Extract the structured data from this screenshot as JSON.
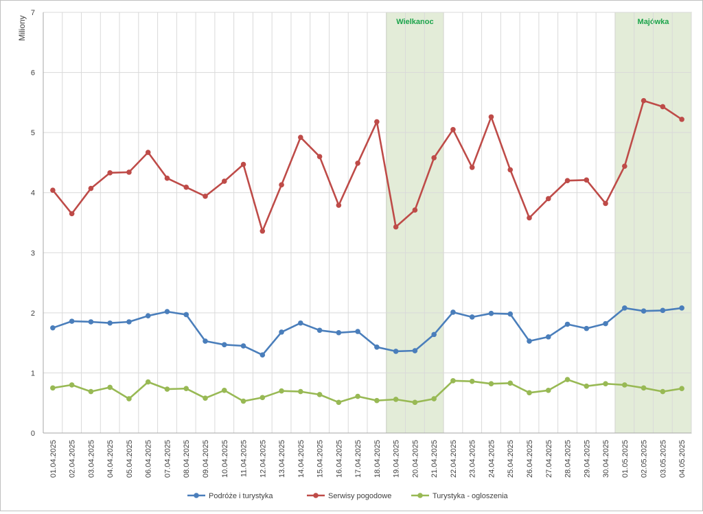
{
  "chart_data": {
    "type": "line",
    "ylabel": "Miliony",
    "ylim": [
      0,
      7
    ],
    "yticks": [
      0,
      1,
      2,
      3,
      4,
      5,
      6,
      7
    ],
    "grid": true,
    "legend_position": "bottom",
    "categories": [
      "01.04.2025",
      "02.04.2025",
      "03.04.2025",
      "04.04.2025",
      "05.04.2025",
      "06.04.2025",
      "07.04.2025",
      "08.04.2025",
      "09.04.2025",
      "10.04.2025",
      "11.04.2025",
      "12.04.2025",
      "13.04.2025",
      "14.04.2025",
      "15.04.2025",
      "16.04.2025",
      "17.04.2025",
      "18.04.2025",
      "19.04.2025",
      "20.04.2025",
      "21.04.2025",
      "22.04.2025",
      "23.04.2025",
      "24.04.2025",
      "25.04.2025",
      "26.04.2025",
      "27.04.2025",
      "28.04.2025",
      "29.04.2025",
      "30.04.2025",
      "01.05.2025",
      "02.05.2025",
      "03.05.2025",
      "04.05.2025"
    ],
    "series": [
      {
        "name": "Podróże i turystyka",
        "color": "#4a7ebb",
        "values": [
          1.75,
          1.86,
          1.85,
          1.83,
          1.85,
          1.95,
          2.02,
          1.97,
          1.53,
          1.47,
          1.45,
          1.3,
          1.68,
          1.83,
          1.71,
          1.67,
          1.69,
          1.43,
          1.36,
          1.37,
          1.64,
          2.01,
          1.93,
          1.99,
          1.98,
          1.53,
          1.6,
          1.81,
          1.74,
          1.82,
          2.08,
          2.03,
          2.04,
          2.08
        ]
      },
      {
        "name": "Serwisy pogodowe",
        "color": "#be4b48",
        "values": [
          4.04,
          3.65,
          4.07,
          4.33,
          4.34,
          4.67,
          4.24,
          4.09,
          3.94,
          4.19,
          4.47,
          3.36,
          4.13,
          4.92,
          4.6,
          3.79,
          4.49,
          5.18,
          3.43,
          3.71,
          4.58,
          5.05,
          4.42,
          5.26,
          4.38,
          3.58,
          3.9,
          4.2,
          4.21,
          3.82,
          4.44,
          5.53,
          5.43,
          5.22
        ]
      },
      {
        "name": "Turystyka - ogloszenia",
        "color": "#98b954",
        "values": [
          0.75,
          0.8,
          0.69,
          0.76,
          0.57,
          0.85,
          0.73,
          0.74,
          0.58,
          0.71,
          0.53,
          0.59,
          0.7,
          0.69,
          0.64,
          0.51,
          0.61,
          0.54,
          0.56,
          0.51,
          0.57,
          0.87,
          0.86,
          0.82,
          0.83,
          0.67,
          0.71,
          0.89,
          0.78,
          0.82,
          0.8,
          0.75,
          0.69,
          0.74
        ]
      }
    ],
    "bands": [
      {
        "label": "Wielkanoc",
        "from": "19.04.2025",
        "to": "21.04.2025",
        "color": "#e3ecd8"
      },
      {
        "label": "Majówka",
        "from": "01.05.2025",
        "to": "04.05.2025",
        "color": "#e3ecd8"
      }
    ]
  }
}
